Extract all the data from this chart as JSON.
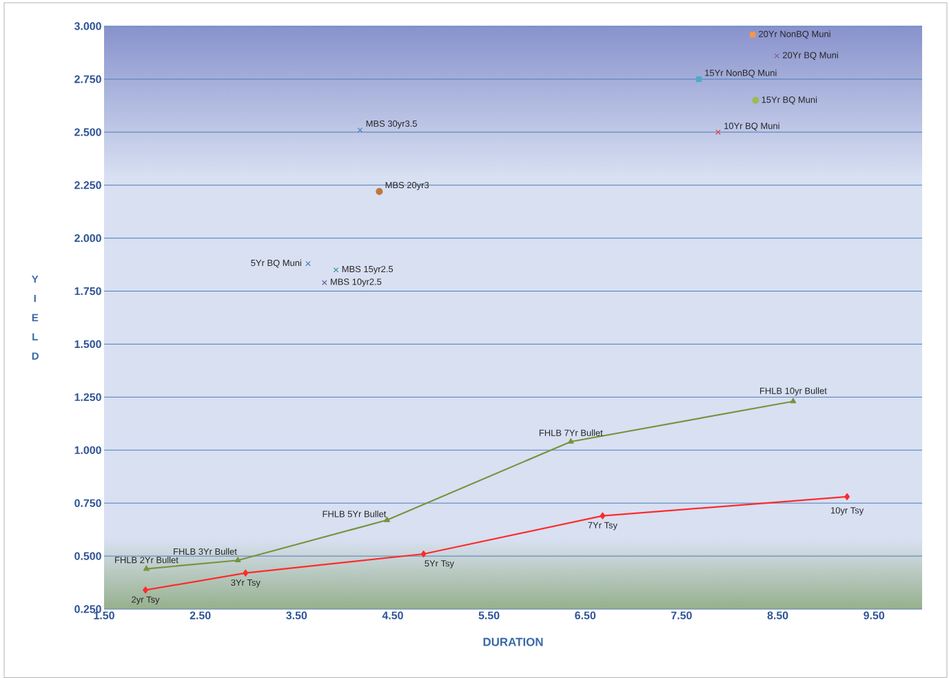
{
  "chart_data": {
    "type": "scatter",
    "xlabel": "DURATION",
    "ylabel": "Y I E L D",
    "xlim": [
      1.5,
      10.0
    ],
    "ylim": [
      0.25,
      3.0
    ],
    "xticks": [
      {
        "value": 1.5,
        "label": "1.50"
      },
      {
        "value": 2.5,
        "label": "2.50"
      },
      {
        "value": 3.5,
        "label": "3.50"
      },
      {
        "value": 4.5,
        "label": "4.50"
      },
      {
        "value": 5.5,
        "label": "5.50"
      },
      {
        "value": 6.5,
        "label": "6.50"
      },
      {
        "value": 7.5,
        "label": "7.50"
      },
      {
        "value": 8.5,
        "label": "8.50"
      },
      {
        "value": 9.5,
        "label": "9.50"
      }
    ],
    "yticks": [
      {
        "value": 0.25,
        "label": "0.250"
      },
      {
        "value": 0.5,
        "label": "0.500"
      },
      {
        "value": 0.75,
        "label": "0.750"
      },
      {
        "value": 1.0,
        "label": "1.000"
      },
      {
        "value": 1.25,
        "label": "1.250"
      },
      {
        "value": 1.5,
        "label": "1.500"
      },
      {
        "value": 1.75,
        "label": "1.750"
      },
      {
        "value": 2.0,
        "label": "2.000"
      },
      {
        "value": 2.25,
        "label": "2.250"
      },
      {
        "value": 2.5,
        "label": "2.500"
      },
      {
        "value": 2.75,
        "label": "2.750"
      },
      {
        "value": 3.0,
        "label": "3.000"
      }
    ],
    "grid": "y",
    "series": [
      {
        "type": "line",
        "color": "#77933c",
        "marker": "triangle",
        "x": [
          1.94,
          2.89,
          4.44,
          6.35,
          8.66
        ],
        "values": [
          0.44,
          0.48,
          0.67,
          1.04,
          1.23
        ]
      },
      {
        "type": "line",
        "color": "#ff2a2a",
        "marker": "diamond",
        "x": [
          1.93,
          2.97,
          4.82,
          6.68,
          9.22
        ],
        "values": [
          0.34,
          0.42,
          0.51,
          0.69,
          0.78
        ]
      },
      {
        "name": "MBS 30yr3.5",
        "color": "#4a7ebb",
        "marker": "cross",
        "x": [
          4.16
        ],
        "values": [
          2.51
        ]
      },
      {
        "name": "MBS 20yr3",
        "color": "#c0783c",
        "marker": "circle",
        "x": [
          4.36
        ],
        "values": [
          2.22
        ]
      },
      {
        "name": "5Yr BQ Muni",
        "color": "#4a7ebb",
        "marker": "cross",
        "x": [
          3.62
        ],
        "values": [
          1.88
        ]
      },
      {
        "name": "MBS 15yr2.5",
        "color": "#2e8b9a",
        "marker": "cross",
        "x": [
          3.91
        ],
        "values": [
          1.85
        ]
      },
      {
        "name": "MBS 10yr2.5",
        "color": "#6a4a8c",
        "marker": "cross",
        "x": [
          3.79
        ],
        "values": [
          1.79
        ]
      },
      {
        "name": "20Yr NonBQ Muni",
        "color": "#f79646",
        "marker": "square",
        "x": [
          8.24
        ],
        "values": [
          2.96
        ]
      },
      {
        "name": "20Yr BQ Muni",
        "color": "#8064a2",
        "marker": "cross",
        "x": [
          8.49
        ],
        "values": [
          2.86
        ]
      },
      {
        "name": "15Yr NonBQ Muni",
        "color": "#4bacc6",
        "marker": "square",
        "x": [
          7.68
        ],
        "values": [
          2.75
        ]
      },
      {
        "name": "15Yr BQ Muni",
        "color": "#9bbb59",
        "marker": "circle",
        "x": [
          8.27
        ],
        "values": [
          2.65
        ]
      },
      {
        "name": "10Yr BQ Muni",
        "color": "#e04040",
        "marker": "cross",
        "x": [
          7.88
        ],
        "values": [
          2.5
        ]
      }
    ],
    "annotations": [
      {
        "text": "FHLB 2Yr Bullet",
        "x": 1.94,
        "y": 0.44
      },
      {
        "text": "FHLB 3Yr Bullet",
        "x": 2.89,
        "y": 0.48
      },
      {
        "text": "FHLB 5Yr Bullet",
        "x": 4.44,
        "y": 0.67
      },
      {
        "text": "FHLB 7Yr Bullet",
        "x": 6.35,
        "y": 1.04
      },
      {
        "text": "FHLB 10yr Bullet",
        "x": 8.66,
        "y": 1.23
      },
      {
        "text": "2yr Tsy",
        "x": 1.93,
        "y": 0.34
      },
      {
        "text": "3Yr Tsy",
        "x": 2.97,
        "y": 0.42
      },
      {
        "text": "5Yr Tsy",
        "x": 4.82,
        "y": 0.51
      },
      {
        "text": "7Yr Tsy",
        "x": 6.68,
        "y": 0.69
      },
      {
        "text": "10yr Tsy",
        "x": 9.22,
        "y": 0.78
      }
    ]
  }
}
